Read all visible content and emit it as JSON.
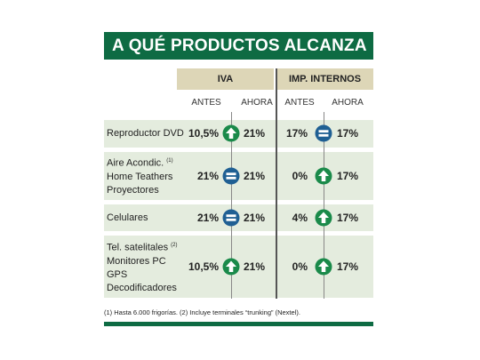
{
  "title": "A QUÉ PRODUCTOS ALCANZA",
  "groups": {
    "iva": "IVA",
    "imp": "IMP. INTERNOS"
  },
  "subheaders": {
    "antes1": "ANTES",
    "ahora1": "AHORA",
    "antes2": "ANTES",
    "ahora2": "AHORA"
  },
  "rows": [
    {
      "labels": [
        "Reproductor DVD"
      ],
      "note": "",
      "iva_antes": "10,5%",
      "iva_icon": "up-arrow-icon",
      "iva_ahora": "21%",
      "imp_antes": "17%",
      "imp_icon": "equal-icon",
      "imp_ahora": "17%"
    },
    {
      "labels": [
        "Aire Acondic.",
        "Home Teathers",
        "Proyectores"
      ],
      "note": "(1)",
      "iva_antes": "21%",
      "iva_icon": "equal-icon",
      "iva_ahora": "21%",
      "imp_antes": "0%",
      "imp_icon": "up-arrow-icon",
      "imp_ahora": "17%"
    },
    {
      "labels": [
        "Celulares"
      ],
      "note": "",
      "iva_antes": "21%",
      "iva_icon": "equal-icon",
      "iva_ahora": "21%",
      "imp_antes": "4%",
      "imp_icon": "up-arrow-icon",
      "imp_ahora": "17%"
    },
    {
      "labels": [
        "Tel. satelitales",
        "Monitores PC",
        "GPS",
        "Decodificadores"
      ],
      "note": "(2)",
      "iva_antes": "10,5%",
      "iva_icon": "up-arrow-icon",
      "iva_ahora": "21%",
      "imp_antes": "0%",
      "imp_icon": "up-arrow-icon",
      "imp_ahora": "17%"
    }
  ],
  "footnote": "(1) Hasta 6.000 frigorías. (2) Incluye terminales “trunking” (Nextel).",
  "colors": {
    "brand_green": "#0e6b43",
    "header_tan": "#ddd6b7",
    "row_bg": "#e4ecde",
    "up_icon": "#1a8a4a",
    "equal_icon": "#1f5f93"
  }
}
